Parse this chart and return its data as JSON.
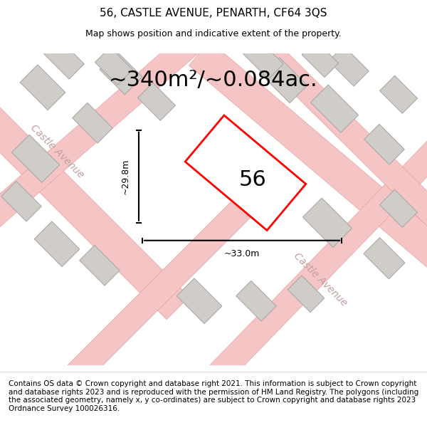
{
  "title": "56, CASTLE AVENUE, PENARTH, CF64 3QS",
  "subtitle": "Map shows position and indicative extent of the property.",
  "area_text": "~340m²/~0.084ac.",
  "label_56": "56",
  "dim_width": "~33.0m",
  "dim_height": "~29.8m",
  "footer": "Contains OS data © Crown copyright and database right 2021. This information is subject to Crown copyright and database rights 2023 and is reproduced with the permission of HM Land Registry. The polygons (including the associated geometry, namely x, y co-ordinates) are subject to Crown copyright and database rights 2023 Ordnance Survey 100026316.",
  "bg_color": "#e8e8e8",
  "map_bg": "#f0eeeb",
  "road_color": "#f5c5c5",
  "road_border_color": "#e8a0a0",
  "building_color": "#d0cdc8",
  "building_border": "#b0aca8",
  "plot_color": "#ff0000",
  "plot_fill": "#ffffff",
  "footer_bg": "#f5f5f0",
  "title_fontsize": 11,
  "subtitle_fontsize": 9,
  "area_fontsize": 22,
  "footer_fontsize": 7.5
}
